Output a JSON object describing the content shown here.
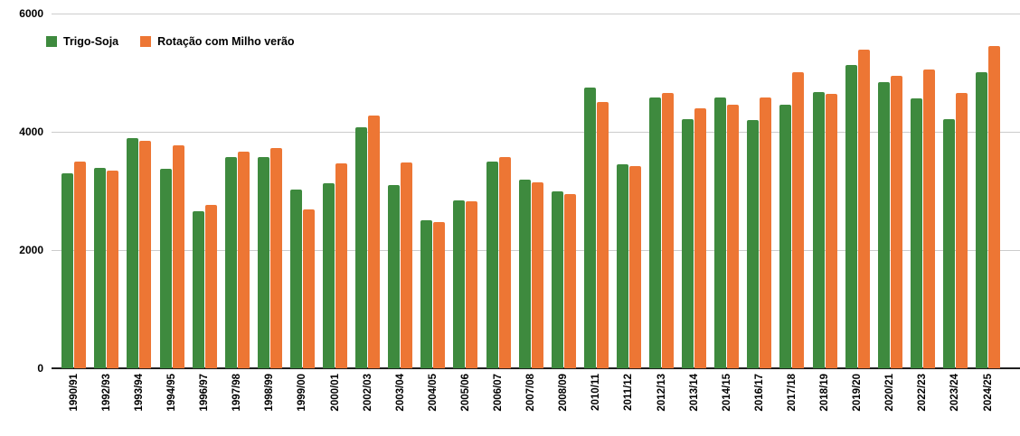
{
  "chart_data": {
    "type": "bar",
    "title": "",
    "xlabel": "",
    "ylabel": "",
    "ylim": [
      0,
      6000
    ],
    "yticks": [
      0,
      2000,
      4000,
      6000
    ],
    "grid": "horizontal",
    "legend_position": "top-left",
    "background_color": "#ffffff",
    "gridline_color": "#cccccc",
    "axis_line_color": "#1f1f1f",
    "categories": [
      "1990/91",
      "1992/93",
      "1993/94",
      "1994/95",
      "1996/97",
      "1997/98",
      "1998/99",
      "1999/00",
      "2000/01",
      "2002/03",
      "2003/04",
      "2004/05",
      "2005/06",
      "2006/07",
      "2007/08",
      "2008/09",
      "2010/11",
      "2011/12",
      "2012/13",
      "2013/14",
      "2014/15",
      "2016/17",
      "2017/18",
      "2018/19",
      "2019/20",
      "2020/21",
      "2022/23",
      "2023/24",
      "2024/25"
    ],
    "series": [
      {
        "name": "Trigo-Soja",
        "color": "#3e8a3e",
        "values": [
          3300,
          3390,
          3900,
          3380,
          2650,
          3570,
          3580,
          3030,
          3130,
          4070,
          3100,
          2510,
          2840,
          3490,
          3190,
          3000,
          4750,
          3450,
          4580,
          4210,
          4580,
          4200,
          4460,
          4670,
          5130,
          4840,
          4560,
          4220,
          5010
        ]
      },
      {
        "name": "Rotação com Milho verão",
        "color": "#ed7634",
        "values": [
          3500,
          3340,
          3840,
          3770,
          2770,
          3670,
          3730,
          2680,
          3470,
          4270,
          3480,
          2470,
          2820,
          3580,
          3150,
          2950,
          4500,
          3420,
          4660,
          4400,
          4460,
          4580,
          5010,
          4640,
          5390,
          4950,
          5060,
          4660,
          5450
        ]
      }
    ]
  }
}
